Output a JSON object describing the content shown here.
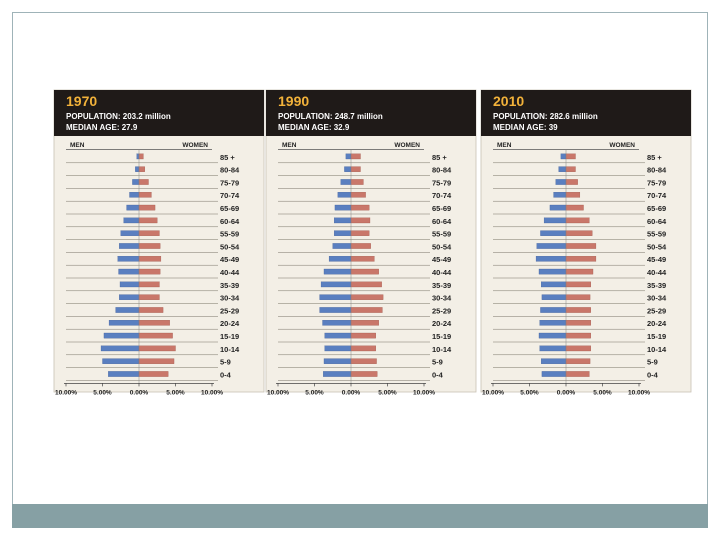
{
  "colors": {
    "men": "#5a7fc0",
    "women": "#c9776a",
    "header_bg": "#1f1a18",
    "year": "#f2b23a",
    "footer": "#86a0a4",
    "panel_bg": "#f3efe6"
  },
  "chart_data": [
    {
      "type": "bar",
      "orientation": "horizontal-pyramid",
      "year": "1970",
      "population": "POPULATION: 203.2 million",
      "median_age": "MEDIAN AGE: 27.9",
      "left_label": "MEN",
      "right_label": "WOMEN",
      "categories": [
        "85 +",
        "80-84",
        "75-79",
        "70-74",
        "65-69",
        "60-64",
        "55-59",
        "50-54",
        "45-49",
        "40-44",
        "35-39",
        "30-34",
        "25-29",
        "20-24",
        "15-19",
        "10-14",
        "5-9",
        "0-4"
      ],
      "series": [
        {
          "name": "MEN",
          "values": [
            0.3,
            0.5,
            0.9,
            1.3,
            1.7,
            2.1,
            2.5,
            2.7,
            2.9,
            2.8,
            2.6,
            2.7,
            3.2,
            4.1,
            4.8,
            5.2,
            5.0,
            4.2
          ]
        },
        {
          "name": "WOMEN",
          "values": [
            0.6,
            0.8,
            1.3,
            1.7,
            2.2,
            2.5,
            2.8,
            2.9,
            3.0,
            2.9,
            2.8,
            2.8,
            3.3,
            4.2,
            4.6,
            5.0,
            4.8,
            4.0
          ]
        }
      ],
      "xlim": [
        -10,
        10
      ],
      "tick_labels": [
        "10.00%",
        "5.00%",
        "0.00%",
        "5.00%",
        "10.00%"
      ]
    },
    {
      "type": "bar",
      "orientation": "horizontal-pyramid",
      "year": "1990",
      "population": "POPULATION: 248.7 million",
      "median_age": "MEDIAN AGE: 32.9",
      "left_label": "MEN",
      "right_label": "WOMEN",
      "categories": [
        "85 +",
        "80-84",
        "75-79",
        "70-74",
        "65-69",
        "60-64",
        "55-59",
        "50-54",
        "45-49",
        "40-44",
        "35-39",
        "30-34",
        "25-29",
        "20-24",
        "15-19",
        "10-14",
        "5-9",
        "0-4"
      ],
      "series": [
        {
          "name": "MEN",
          "values": [
            0.7,
            0.9,
            1.4,
            1.8,
            2.2,
            2.3,
            2.3,
            2.5,
            3.0,
            3.7,
            4.1,
            4.3,
            4.3,
            3.9,
            3.6,
            3.6,
            3.7,
            3.8
          ]
        },
        {
          "name": "WOMEN",
          "values": [
            1.3,
            1.3,
            1.7,
            2.0,
            2.5,
            2.6,
            2.5,
            2.7,
            3.2,
            3.8,
            4.2,
            4.4,
            4.3,
            3.8,
            3.4,
            3.4,
            3.5,
            3.6
          ]
        }
      ],
      "xlim": [
        -10,
        10
      ],
      "tick_labels": [
        "10.00%",
        "5.00%",
        "0.00%",
        "5.00%",
        "10.00%"
      ]
    },
    {
      "type": "bar",
      "orientation": "horizontal-pyramid",
      "year": "2010",
      "population": "POPULATION: 282.6 million",
      "median_age": "MEDIAN AGE: 39",
      "left_label": "MEN",
      "right_label": "WOMEN",
      "categories": [
        "85 +",
        "80-84",
        "75-79",
        "70-74",
        "65-69",
        "60-64",
        "55-59",
        "50-54",
        "45-49",
        "40-44",
        "35-39",
        "30-34",
        "25-29",
        "20-24",
        "15-19",
        "10-14",
        "5-9",
        "0-4"
      ],
      "series": [
        {
          "name": "MEN",
          "values": [
            0.7,
            1.0,
            1.4,
            1.7,
            2.2,
            3.0,
            3.5,
            4.0,
            4.1,
            3.7,
            3.4,
            3.3,
            3.5,
            3.6,
            3.7,
            3.6,
            3.4,
            3.3
          ]
        },
        {
          "name": "WOMEN",
          "values": [
            1.3,
            1.3,
            1.6,
            1.9,
            2.4,
            3.2,
            3.6,
            4.1,
            4.1,
            3.7,
            3.4,
            3.3,
            3.4,
            3.4,
            3.4,
            3.4,
            3.3,
            3.2
          ]
        }
      ],
      "xlim": [
        -10,
        10
      ],
      "tick_labels": [
        "10.00%",
        "5.00%",
        "0.00%",
        "5.00%",
        "10.00%"
      ]
    }
  ]
}
